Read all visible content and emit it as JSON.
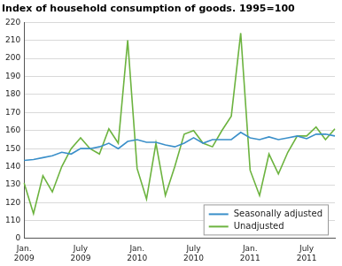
{
  "chart_data": {
    "type": "line",
    "title": "Index of household consumption of goods. 1995=100",
    "categories": [
      "Jan. 2009",
      null,
      null,
      null,
      null,
      null,
      "July 2009",
      null,
      null,
      null,
      null,
      null,
      "Jan. 2010",
      null,
      null,
      null,
      null,
      null,
      "July 2010",
      null,
      null,
      null,
      null,
      null,
      "Jan. 2011",
      null,
      null,
      null,
      null,
      null,
      "July 2011",
      null,
      null,
      null
    ],
    "series": [
      {
        "name": "Seasonally adjusted",
        "color": "#3a8fc9",
        "values": [
          143.5,
          144,
          145,
          146,
          148,
          147,
          150,
          150,
          151,
          153,
          150,
          154,
          155,
          153.5,
          153.5,
          152,
          151,
          153,
          156,
          153,
          155,
          155,
          155,
          159,
          156,
          155,
          156.5,
          155,
          156,
          157,
          155.5,
          158,
          158,
          157
        ]
      },
      {
        "name": "Unadjusted",
        "color": "#6cb33f",
        "values": [
          131,
          114,
          135,
          126,
          140,
          150,
          156,
          150,
          147,
          161,
          153,
          210,
          139,
          122,
          153,
          124,
          140,
          158,
          160,
          153,
          151,
          160,
          168,
          214,
          138,
          124,
          147,
          136,
          148,
          157,
          157,
          162,
          155,
          161
        ]
      }
    ],
    "ylim": [
      0,
      220
    ],
    "yticks": [
      0,
      110,
      120,
      130,
      140,
      150,
      160,
      170,
      180,
      190,
      200,
      210,
      220
    ],
    "grid": true,
    "legend": "bottom right"
  }
}
